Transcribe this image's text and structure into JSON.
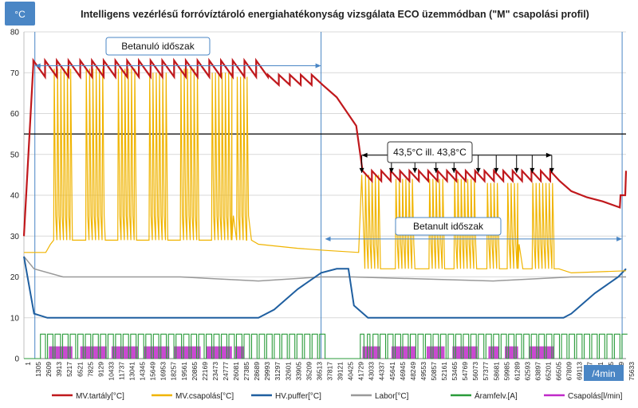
{
  "chart_data": {
    "type": "line",
    "title": "Intelligens vezérlésű forróvíztároló energiahatékonyság  vizsgálata  ECO üzemmódban (\"M\" csapolási profil)",
    "ylabel": "°C",
    "xlabel": "/4min",
    "ylim": [
      0,
      80
    ],
    "xlim": [
      1,
      77000
    ],
    "y_ticks": [
      "0",
      "10",
      "20",
      "30",
      "40",
      "50",
      "60",
      "70",
      "80"
    ],
    "x_ticks": [
      "1",
      "1305",
      "2609",
      "3913",
      "5217",
      "6521",
      "7825",
      "9129",
      "10433",
      "11737",
      "13041",
      "14345",
      "15649",
      "16953",
      "18257",
      "19561",
      "20865",
      "22169",
      "23473",
      "24777",
      "26081",
      "27385",
      "28689",
      "29993",
      "31297",
      "32601",
      "33905",
      "35209",
      "36513",
      "37817",
      "39121",
      "40425",
      "41729",
      "43033",
      "44337",
      "45641",
      "46945",
      "48249",
      "49553",
      "50857",
      "52161",
      "53465",
      "54769",
      "56073",
      "57377",
      "58681",
      "59985",
      "61289",
      "62593",
      "63897",
      "65201",
      "66505",
      "67809",
      "69113",
      "70417",
      "71721",
      "73025",
      "74329",
      "75633"
    ],
    "series": [
      {
        "name": "MV.tartály[°C]",
        "color": "#c0181c",
        "values": [
          [
            1,
            30
          ],
          [
            1500,
            72
          ],
          [
            2800,
            70
          ],
          [
            3600,
            72
          ],
          [
            5000,
            71
          ],
          [
            8000,
            72
          ],
          [
            12000,
            72
          ],
          [
            16000,
            71
          ],
          [
            20000,
            72
          ],
          [
            24000,
            72
          ],
          [
            28000,
            71
          ],
          [
            31000,
            69
          ],
          [
            33000,
            69
          ],
          [
            36000,
            69
          ],
          [
            37500,
            68
          ],
          [
            40000,
            64
          ],
          [
            42500,
            57
          ],
          [
            43400,
            45
          ],
          [
            45500,
            44
          ],
          [
            49000,
            43
          ],
          [
            53000,
            43
          ],
          [
            57000,
            43
          ],
          [
            61000,
            43
          ],
          [
            65000,
            43
          ],
          [
            68000,
            42
          ],
          [
            71000,
            40
          ],
          [
            73000,
            39
          ],
          [
            75000,
            38
          ],
          [
            76200,
            37
          ],
          [
            76400,
            40
          ],
          [
            77000,
            46
          ]
        ]
      },
      {
        "name": "MV.csapolás[°C]",
        "color": "#f0b400",
        "values": [
          [
            1,
            26
          ],
          [
            2800,
            27
          ],
          [
            3600,
            28
          ],
          [
            5000,
            71
          ],
          [
            6000,
            29
          ],
          [
            8000,
            70
          ],
          [
            9000,
            28
          ],
          [
            12000,
            71
          ],
          [
            13000,
            28
          ],
          [
            16000,
            70
          ],
          [
            17000,
            28
          ],
          [
            20000,
            71
          ],
          [
            21000,
            28
          ],
          [
            24000,
            70
          ],
          [
            25000,
            28
          ],
          [
            27000,
            69
          ],
          [
            28000,
            28
          ],
          [
            30000,
            27
          ],
          [
            35000,
            27
          ],
          [
            38000,
            26
          ],
          [
            40000,
            26
          ],
          [
            43200,
            26
          ],
          [
            43800,
            45
          ],
          [
            45000,
            22
          ],
          [
            48000,
            44
          ],
          [
            50000,
            22
          ],
          [
            54000,
            43
          ],
          [
            56000,
            22
          ],
          [
            58000,
            44
          ],
          [
            60000,
            22
          ],
          [
            64000,
            43
          ],
          [
            66000,
            22
          ],
          [
            68000,
            43
          ],
          [
            70000,
            21
          ],
          [
            77000,
            21
          ]
        ]
      },
      {
        "name": "HV.puffer[°C]",
        "color": "#1f5fa0",
        "values": [
          [
            1,
            25
          ],
          [
            1300,
            11
          ],
          [
            3000,
            10
          ],
          [
            30000,
            10
          ],
          [
            32000,
            12
          ],
          [
            35000,
            17
          ],
          [
            38000,
            21
          ],
          [
            40000,
            22
          ],
          [
            41500,
            22
          ],
          [
            42200,
            13
          ],
          [
            44000,
            10
          ],
          [
            69000,
            10
          ],
          [
            70000,
            11
          ],
          [
            73000,
            16
          ],
          [
            76000,
            20
          ],
          [
            77000,
            22
          ]
        ]
      },
      {
        "name": "Labor[°C]",
        "color": "#999999",
        "values": [
          [
            1,
            25
          ],
          [
            1300,
            22
          ],
          [
            5000,
            20
          ],
          [
            20000,
            20
          ],
          [
            30000,
            19
          ],
          [
            38000,
            20
          ],
          [
            40000,
            20
          ],
          [
            42000,
            20
          ],
          [
            60000,
            19
          ],
          [
            70000,
            20
          ],
          [
            77000,
            20
          ]
        ]
      },
      {
        "name": "Áramfelv.[A]",
        "color": "#2a9b3a",
        "values": [
          [
            1,
            6
          ],
          [
            77000,
            6
          ]
        ]
      },
      {
        "name": "Csapolás[l/min]",
        "color": "#c02ac8",
        "values": [
          [
            1,
            0
          ],
          [
            3000,
            3
          ],
          [
            77000,
            3
          ]
        ]
      }
    ],
    "annotations": [
      {
        "text": "Betanuló időszak",
        "x_range": [
          1400,
          38000
        ],
        "y": 76
      },
      {
        "text": "43,5°C ill. 43,8°C",
        "y": 50,
        "points_x": [
          43200,
          47000,
          50000,
          52700,
          55000,
          58100,
          60400,
          63000,
          65000,
          67500
        ]
      },
      {
        "text": "Betanult időszak",
        "x_range": [
          38500,
          76500
        ],
        "y": 29.5
      }
    ],
    "reference_line": {
      "y": 55
    }
  }
}
